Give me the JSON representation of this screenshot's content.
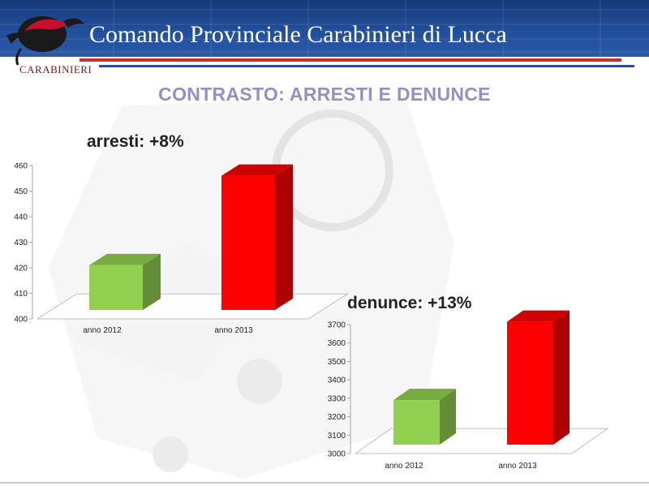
{
  "header": {
    "title": "Comando Provinciale Carabinieri di Lucca",
    "logo_text": "CARABINIERI"
  },
  "slide": {
    "subtitle": "CONTRASTO: ARRESTI E DENUNCE"
  },
  "colors": {
    "bar_2012": "#92d050",
    "bar_2013": "#ff0000",
    "header_blue": "#224f9b",
    "accent_red": "#c8302a",
    "subtitle": "#9a8cc4"
  },
  "chart_data": [
    {
      "type": "bar",
      "title": "arresti: +8%",
      "categories": [
        "anno 2012",
        "anno 2013"
      ],
      "values": [
        421,
        456
      ],
      "colors": [
        "#92d050",
        "#ff0000"
      ],
      "ylim": [
        400,
        460
      ],
      "yticks": [
        "400",
        "410",
        "420",
        "430",
        "440",
        "450",
        "460"
      ],
      "style": "3d",
      "grid": false,
      "legend": "none"
    },
    {
      "type": "bar",
      "title": "denunce: +13%",
      "categories": [
        "anno 2012",
        "anno 2013"
      ],
      "values": [
        3290,
        3715
      ],
      "colors": [
        "#92d050",
        "#ff0000"
      ],
      "ylim": [
        3000,
        3700
      ],
      "yticks": [
        "3000",
        "3100",
        "3200",
        "3300",
        "3400",
        "3500",
        "3600",
        "3700"
      ],
      "style": "3d",
      "grid": false,
      "legend": "none"
    }
  ]
}
